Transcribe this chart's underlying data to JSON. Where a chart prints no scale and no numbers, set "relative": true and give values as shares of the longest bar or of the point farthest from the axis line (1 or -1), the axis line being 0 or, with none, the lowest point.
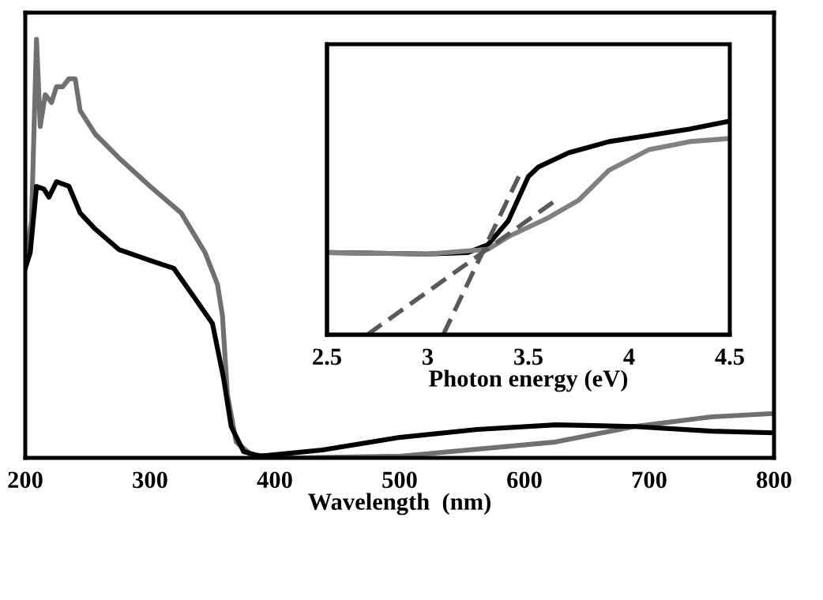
{
  "chart_data": [
    {
      "type": "line",
      "xlabel": "Wavelength  (nm)",
      "relative": true,
      "xlim": [
        200,
        800
      ],
      "xticks": [
        200,
        300,
        400,
        500,
        600,
        700,
        800
      ],
      "grid": false,
      "legend": false,
      "marker": "none",
      "line_style": "solid",
      "series": [
        {
          "color": "#707070",
          "x": [
            200,
            205,
            209,
            212,
            216,
            221,
            225,
            230,
            235,
            240,
            244,
            256,
            275,
            300,
            325,
            344,
            354,
            358,
            362,
            369,
            381,
            412,
            500,
            625,
            688,
            750,
            800
          ],
          "values": [
            0.472,
            0.566,
            1.0,
            0.792,
            0.868,
            0.849,
            0.887,
            0.887,
            0.906,
            0.906,
            0.83,
            0.774,
            0.717,
            0.649,
            0.585,
            0.491,
            0.415,
            0.34,
            0.151,
            0.038,
            0.008,
            0.0,
            0.004,
            0.038,
            0.075,
            0.098,
            0.106
          ]
        },
        {
          "color": "#000000",
          "x": [
            200,
            204,
            209,
            215,
            219,
            225,
            235,
            244,
            256,
            275,
            300,
            319,
            337,
            350,
            359,
            365,
            375,
            388,
            438,
            500,
            562,
            625,
            688,
            750,
            800
          ],
          "values": [
            0.453,
            0.491,
            0.649,
            0.642,
            0.623,
            0.66,
            0.649,
            0.585,
            0.547,
            0.498,
            0.472,
            0.453,
            0.377,
            0.321,
            0.189,
            0.075,
            0.015,
            0.004,
            0.019,
            0.049,
            0.068,
            0.079,
            0.075,
            0.064,
            0.06
          ]
        }
      ]
    },
    {
      "type": "line",
      "xlabel": "Photon energy (eV)",
      "relative": true,
      "xlim": [
        2.5,
        4.5
      ],
      "xticks": [
        2.5,
        3,
        3.5,
        4,
        4.5
      ],
      "grid": false,
      "legend": false,
      "marker": "none",
      "line_style": "solid",
      "series": [
        {
          "color": "#000000",
          "x": [
            2.5,
            3.0,
            3.2,
            3.3,
            3.4,
            3.5,
            3.55,
            3.7,
            3.9,
            4.1,
            4.3,
            4.5
          ],
          "values": [
            0.385,
            0.378,
            0.385,
            0.422,
            0.533,
            0.741,
            0.785,
            0.852,
            0.904,
            0.933,
            0.963,
            1.0
          ]
        },
        {
          "color": "#808080",
          "x": [
            2.5,
            3.0,
            3.3,
            3.4,
            3.6,
            3.75,
            3.9,
            4.1,
            4.3,
            4.5
          ],
          "values": [
            0.385,
            0.378,
            0.4,
            0.459,
            0.548,
            0.63,
            0.77,
            0.867,
            0.904,
            0.919
          ]
        },
        {
          "color": "#595959",
          "line_style": "dashed",
          "x": [
            2.7,
            3.625
          ],
          "values": [
            0.0,
            0.622
          ]
        },
        {
          "color": "#595959",
          "line_style": "dashed",
          "x": [
            3.077,
            3.46
          ],
          "values": [
            0.0,
            0.756
          ]
        }
      ]
    }
  ]
}
